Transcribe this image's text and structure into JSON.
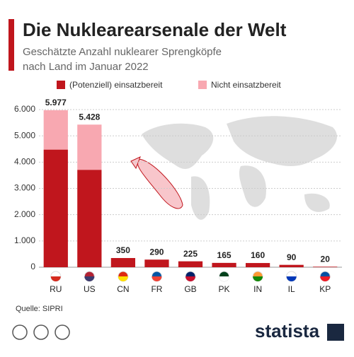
{
  "chart_data": {
    "type": "stacked-bar",
    "title": "Die Nuklearearsenale der Welt",
    "subtitle": [
      "Geschätzte Anzahl nuklearer Sprengköpfe",
      "nach Land im Januar 2022"
    ],
    "categories": [
      "RU",
      "US",
      "CN",
      "FR",
      "GB",
      "PK",
      "IN",
      "IL",
      "KP"
    ],
    "series": [
      {
        "name": "(Potenziell) einsatzbereit",
        "color": "#c0161d",
        "values": [
          4477,
          3708,
          350,
          290,
          225,
          165,
          160,
          90,
          20
        ]
      },
      {
        "name": "Nicht einsatzbereit",
        "color": "#f8a8b1",
        "values": [
          1500,
          1720,
          0,
          0,
          0,
          0,
          0,
          0,
          0
        ]
      }
    ],
    "totals": {
      "values": [
        5977,
        5428,
        350,
        290,
        225,
        165,
        160,
        90,
        20
      ],
      "value_labels": [
        "5.977",
        "5.428",
        "350",
        "290",
        "225",
        "165",
        "160",
        "90",
        "20"
      ]
    },
    "ylim": [
      0,
      6000
    ],
    "yticks": [
      0,
      {
        "value": 1000,
        "label": "1.000"
      },
      {
        "value": 2000,
        "label": "2.000"
      },
      {
        "value": 3000,
        "label": "3.000"
      },
      {
        "value": 4000,
        "label": "4.000"
      },
      {
        "value": 5000,
        "label": "5.000"
      },
      {
        "value": 6000,
        "label": "6.000"
      }
    ],
    "grid": true,
    "source": "Quelle: SIPRI",
    "brand": "statista"
  }
}
